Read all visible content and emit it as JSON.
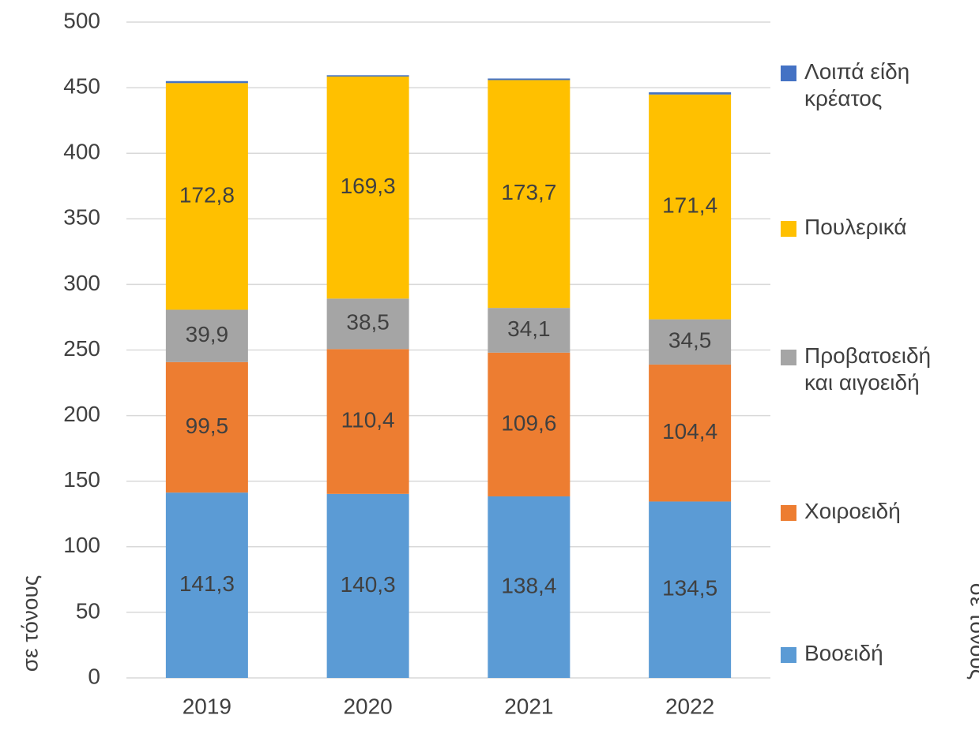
{
  "chart_data": {
    "type": "stacked_bar",
    "y_label": "σε τόνους",
    "categories": [
      "2019",
      "2020",
      "2021",
      "2022"
    ],
    "series": [
      {
        "name": "Βοοειδή",
        "color": "#5b9bd5",
        "values": [
          141.3,
          140.3,
          138.4,
          134.5
        ],
        "value_labels": [
          "141,3",
          "140,3",
          "138,4",
          "134,5"
        ]
      },
      {
        "name": "Χοιροειδή",
        "color": "#ed7d31",
        "values": [
          99.5,
          110.4,
          109.6,
          104.4
        ],
        "value_labels": [
          "99,5",
          "110,4",
          "109,6",
          "104,4"
        ]
      },
      {
        "name": "Προβατοειδή και αιγοειδή",
        "color": "#a5a5a5",
        "values": [
          39.9,
          38.5,
          34.1,
          34.5
        ],
        "value_labels": [
          "39,9",
          "38,5",
          "34,1",
          "34,5"
        ]
      },
      {
        "name": "Πουλερικά",
        "color": "#ffc000",
        "values": [
          172.8,
          169.3,
          173.7,
          171.4
        ],
        "value_labels": [
          "172,8",
          "169,3",
          "173,7",
          "171,4"
        ]
      },
      {
        "name": "Λοιπά είδη κρέατος",
        "color": "#4472c4",
        "values": [
          1.5,
          1,
          1.2,
          1.7
        ]
      }
    ],
    "ylim": [
      0,
      500
    ],
    "yticks": [
      0,
      50,
      100,
      150,
      200,
      250,
      300,
      350,
      400,
      450,
      500
    ],
    "grid": true,
    "legend": "right"
  }
}
